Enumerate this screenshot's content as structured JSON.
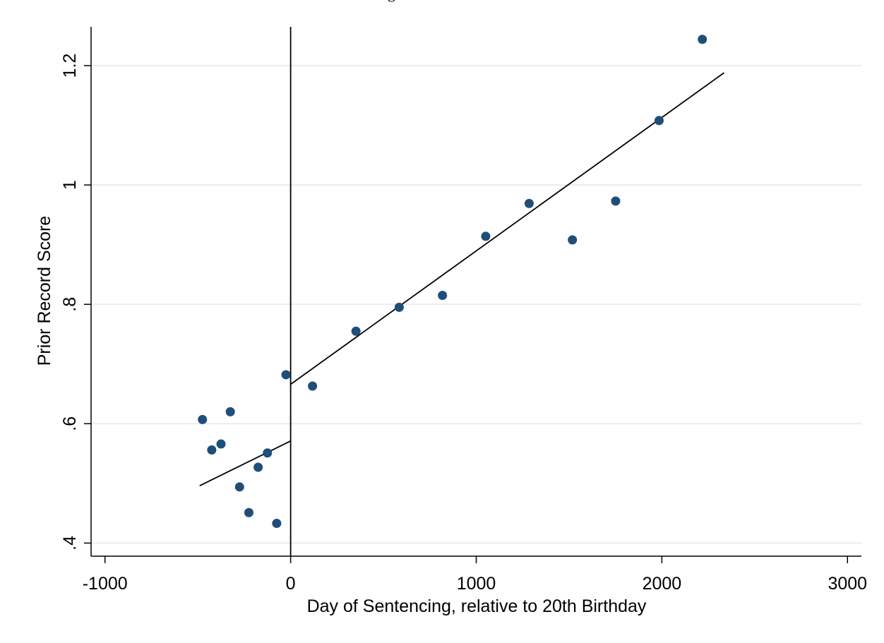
{
  "caption": "gh",
  "chart_data": {
    "type": "scatter",
    "title": "",
    "xlabel": "Day of Sentencing, relative to 20th Birthday",
    "ylabel": "Prior Record Score",
    "xlim": [
      -1075,
      3075
    ],
    "ylim": [
      0.378,
      1.265
    ],
    "xticks": [
      -1000,
      0,
      1000,
      2000,
      3000
    ],
    "xtick_labels": [
      "-1000",
      "0",
      "1000",
      "2000",
      "3000"
    ],
    "yticks": [
      0.4,
      0.6,
      0.8,
      1.0,
      1.2
    ],
    "ytick_labels": [
      ".4",
      ".6",
      ".8",
      "1",
      "1.2"
    ],
    "grid": "horizontal",
    "cutoff_x": 0,
    "marker_color": "#1f4e79",
    "series": [
      {
        "points": [
          {
            "x": -475,
            "y": 0.607
          },
          {
            "x": -425,
            "y": 0.556
          },
          {
            "x": -375,
            "y": 0.566
          },
          {
            "x": -325,
            "y": 0.62
          },
          {
            "x": -275,
            "y": 0.494
          },
          {
            "x": -225,
            "y": 0.451
          },
          {
            "x": -175,
            "y": 0.527
          },
          {
            "x": -125,
            "y": 0.551
          },
          {
            "x": -75,
            "y": 0.433
          },
          {
            "x": -25,
            "y": 0.682
          },
          {
            "x": 118,
            "y": 0.663
          },
          {
            "x": 352,
            "y": 0.755
          },
          {
            "x": 585,
            "y": 0.795
          },
          {
            "x": 818,
            "y": 0.815
          },
          {
            "x": 1051,
            "y": 0.914
          },
          {
            "x": 1285,
            "y": 0.969
          },
          {
            "x": 1518,
            "y": 0.908
          },
          {
            "x": 1751,
            "y": 0.973
          },
          {
            "x": 1985,
            "y": 1.108
          },
          {
            "x": 2218,
            "y": 1.244
          }
        ]
      }
    ],
    "fit_lines": [
      {
        "segment": "left",
        "x": [
          -490,
          0
        ],
        "y": [
          0.496,
          0.571
        ]
      },
      {
        "segment": "right",
        "x": [
          0,
          2335
        ],
        "y": [
          0.666,
          1.188
        ]
      }
    ]
  }
}
